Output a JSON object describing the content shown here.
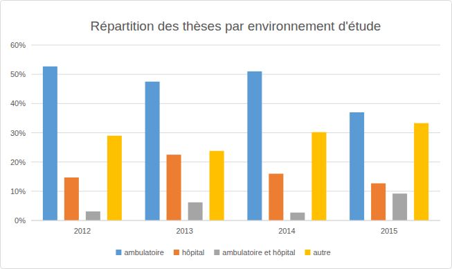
{
  "chart_data": {
    "type": "bar",
    "title": "Répartition des thèses par environnement d'étude",
    "categories": [
      "2012",
      "2013",
      "2014",
      "2015"
    ],
    "series": [
      {
        "name": "ambulatoire",
        "color": "#5b9bd5",
        "values": [
          52.7,
          47.5,
          51,
          37
        ]
      },
      {
        "name": "hôpital",
        "color": "#ed7d31",
        "values": [
          14.7,
          22.5,
          16,
          12.7
        ]
      },
      {
        "name": "ambulatoire et hôpital",
        "color": "#a5a5a5",
        "values": [
          3.1,
          6.2,
          2.7,
          9.2
        ]
      },
      {
        "name": "autre",
        "color": "#ffc000",
        "values": [
          29,
          23.8,
          30.2,
          33.3
        ]
      }
    ],
    "ylim": [
      0,
      60
    ],
    "yticks": [
      {
        "value": 0,
        "label": "0%"
      },
      {
        "value": 10,
        "label": "10%"
      },
      {
        "value": 20,
        "label": "20%"
      },
      {
        "value": 30,
        "label": "30%"
      },
      {
        "value": 40,
        "label": "40%"
      },
      {
        "value": 50,
        "label": "50%"
      },
      {
        "value": 60,
        "label": "60%"
      }
    ],
    "grid": true,
    "legend": "bottom"
  }
}
